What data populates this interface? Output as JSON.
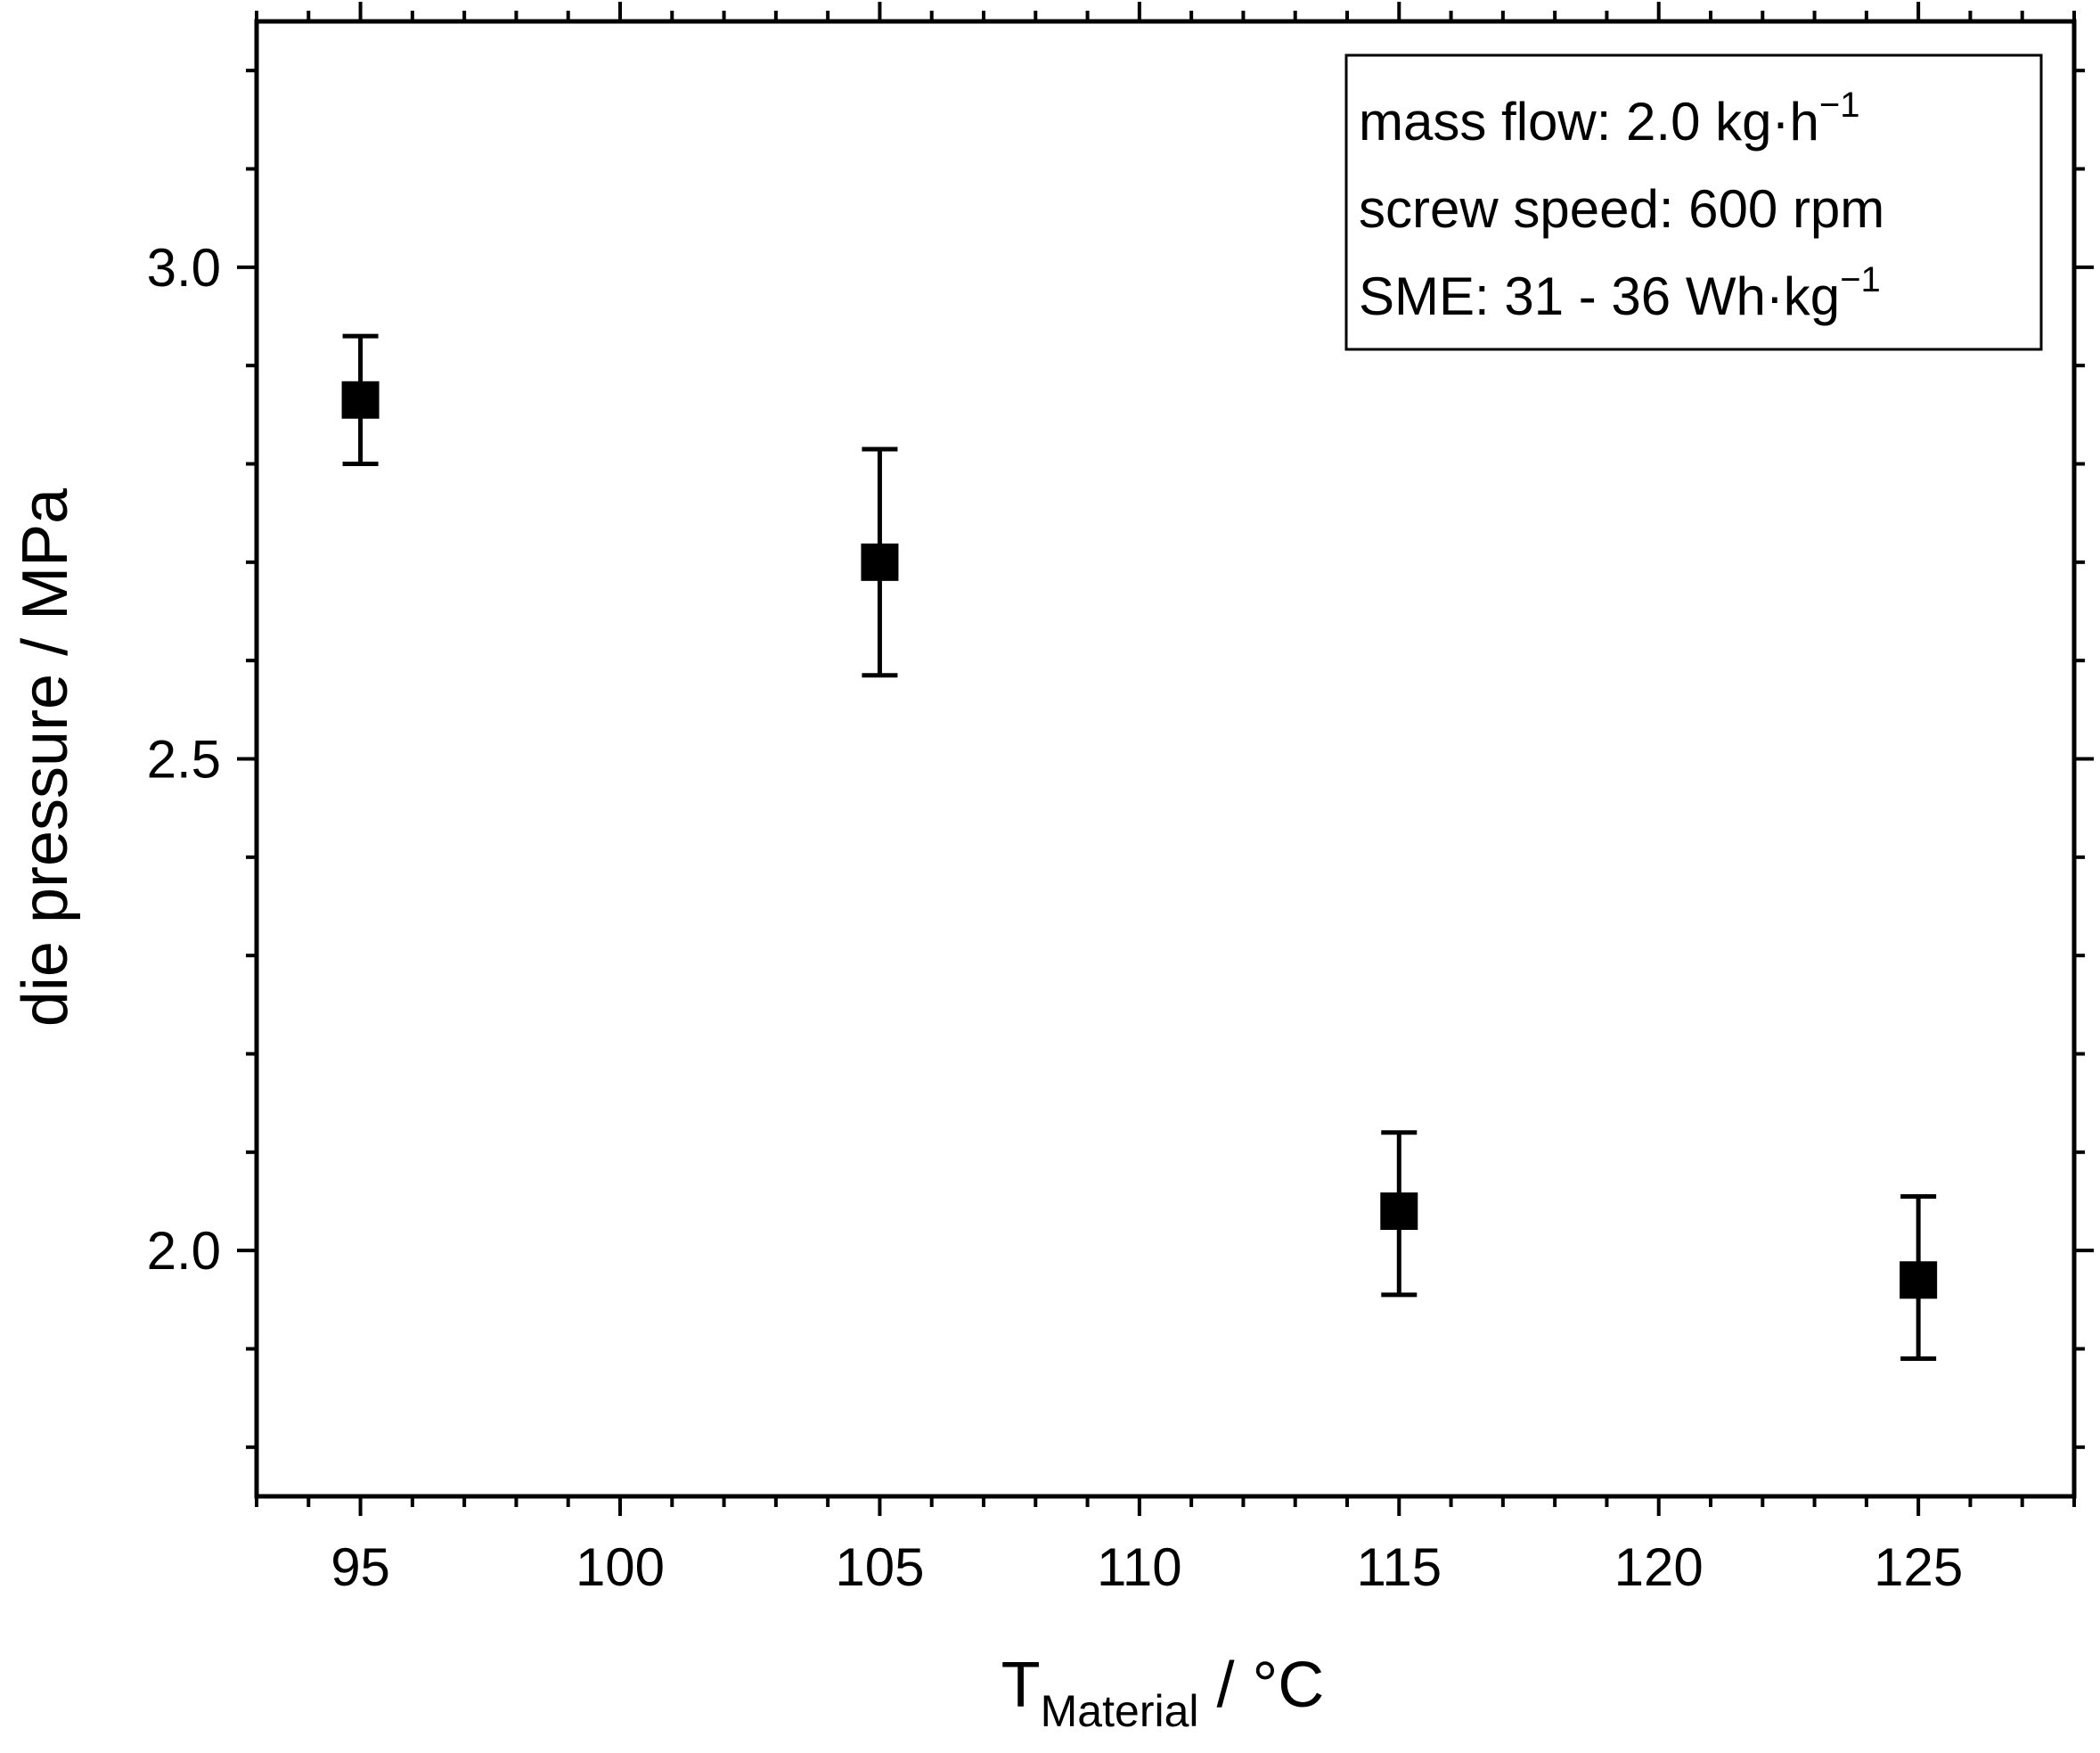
{
  "chart_data": {
    "type": "scatter",
    "xlabel_main": "T",
    "xlabel_sub": "Material",
    "xlabel_unit": " / °C",
    "ylabel": "die pressure / MPa",
    "xlim": [
      93,
      128
    ],
    "ylim": [
      1.75,
      3.25
    ],
    "x_ticks": [
      95,
      100,
      105,
      110,
      115,
      120,
      125
    ],
    "x_tick_labels": [
      "95",
      "100",
      "105",
      "110",
      "115",
      "120",
      "125"
    ],
    "y_ticks": [
      2.0,
      2.5,
      3.0
    ],
    "y_tick_labels": [
      "2.0",
      "2.5",
      "3.0"
    ],
    "x_minor_step": 1,
    "y_minor_step": 0.1,
    "grid": false,
    "marker": "square",
    "color": "#000000",
    "series": [
      {
        "x": [
          95,
          105,
          115,
          125
        ],
        "y": [
          2.865,
          2.7,
          2.04,
          1.97
        ],
        "err_low": [
          2.8,
          2.585,
          1.955,
          1.89
        ],
        "err_high": [
          2.93,
          2.815,
          2.12,
          2.055
        ]
      }
    ],
    "annotation": {
      "position": "top-right",
      "lines": [
        {
          "text": "mass flow: 2.0 kg·h",
          "sup": "−1"
        },
        {
          "text": "screw speed: 600 rpm",
          "sup": ""
        },
        {
          "text": "SME: 31 - 36 Wh·kg",
          "sup": "−1"
        }
      ]
    }
  }
}
